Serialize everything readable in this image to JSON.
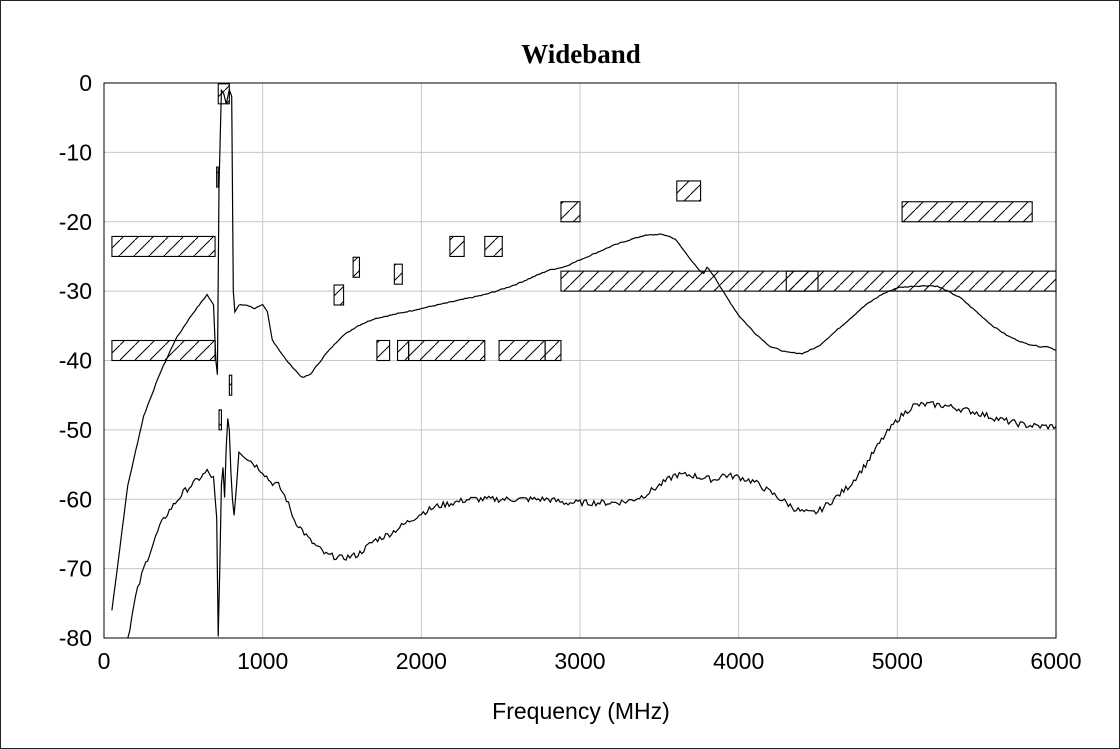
{
  "chart_data": {
    "type": "line",
    "title": "Wideband",
    "xlabel": "Frequency (MHz)",
    "ylabel": "",
    "xlim": [
      0,
      6000
    ],
    "ylim": [
      -80,
      0
    ],
    "grid": true,
    "x_ticks": [
      "0",
      "1000",
      "2000",
      "3000",
      "4000",
      "5000",
      "6000"
    ],
    "y_ticks": [
      "0",
      "-10",
      "-20",
      "-30",
      "-40",
      "-50",
      "-60",
      "-70",
      "-80"
    ],
    "series": [
      {
        "x": [
          50,
          150,
          250,
          350,
          450,
          550,
          650,
          690,
          705,
          715,
          725,
          740,
          755,
          770,
          790,
          805,
          815,
          825,
          850,
          900,
          950,
          1000,
          1030,
          1060,
          1150,
          1250,
          1300,
          1400,
          1500,
          1600,
          1700,
          1800,
          1900,
          2000,
          2100,
          2200,
          2300,
          2400,
          2500,
          2600,
          2700,
          2800,
          2900,
          3000,
          3100,
          3200,
          3300,
          3400,
          3500,
          3550,
          3600,
          3650,
          3700,
          3750,
          3780,
          3800,
          3850,
          3900,
          4000,
          4100,
          4200,
          4300,
          4400,
          4450,
          4500,
          4600,
          4700,
          4800,
          4900,
          5000,
          5100,
          5200,
          5250,
          5300,
          5400,
          5500,
          5600,
          5700,
          5800,
          5900,
          5950,
          6000
        ],
        "y": [
          -76,
          -58,
          -48,
          -42,
          -37,
          -33.5,
          -30.5,
          -32,
          -40,
          -42,
          -15,
          -1,
          -1.5,
          -3,
          -1,
          -2,
          -30,
          -33,
          -32,
          -32,
          -32.5,
          -32,
          -33,
          -37,
          -40,
          -42.5,
          -42,
          -39,
          -36.5,
          -35,
          -34,
          -33.5,
          -33,
          -32.5,
          -32,
          -31.5,
          -31,
          -30.5,
          -29.8,
          -29,
          -28,
          -27,
          -26.5,
          -25.5,
          -24.5,
          -23.5,
          -22.7,
          -22,
          -21.8,
          -22,
          -22.5,
          -24,
          -25.5,
          -27,
          -27.5,
          -26.5,
          -28,
          -30,
          -33.5,
          -36,
          -38,
          -38.8,
          -39,
          -38.5,
          -38,
          -36,
          -34,
          -32,
          -30.5,
          -29.5,
          -29.3,
          -29.2,
          -29.3,
          -29.8,
          -31,
          -33,
          -35,
          -36.5,
          -37.5,
          -38,
          -38,
          -38.5
        ]
      },
      {
        "x": [
          150,
          200,
          250,
          300,
          350,
          400,
          450,
          500,
          550,
          600,
          650,
          690,
          700,
          710,
          720,
          730,
          740,
          750,
          760,
          770,
          780,
          790,
          800,
          810,
          820,
          835,
          850,
          900,
          950,
          1000,
          1050,
          1100,
          1150,
          1200,
          1300,
          1400,
          1500,
          1600,
          1700,
          1800,
          1900,
          2000,
          2100,
          2200,
          2300,
          2400,
          2500,
          2600,
          2700,
          2800,
          2900,
          3000,
          3100,
          3200,
          3300,
          3400,
          3500,
          3600,
          3700,
          3750,
          3800,
          3850,
          3900,
          4000,
          4100,
          4200,
          4300,
          4350,
          4400,
          4450,
          4500,
          4600,
          4700,
          4800,
          4900,
          5000,
          5100,
          5200,
          5300,
          5400,
          5500,
          5600,
          5700,
          5800,
          5900,
          6000
        ],
        "y": [
          -80,
          -74,
          -70,
          -67,
          -64,
          -62,
          -60.5,
          -59,
          -58,
          -57,
          -56,
          -57,
          -60,
          -63,
          -80,
          -70,
          -58,
          -55,
          -60,
          -53,
          -48,
          -50,
          -56,
          -60,
          -62,
          -58,
          -53,
          -54,
          -55,
          -56,
          -57.5,
          -58,
          -60,
          -63,
          -66,
          -68,
          -68.5,
          -68,
          -66,
          -65,
          -63.5,
          -62,
          -61,
          -60.5,
          -60,
          -60,
          -60,
          -60,
          -60,
          -60,
          -60.5,
          -60.5,
          -60.5,
          -60.5,
          -60.3,
          -59.5,
          -58,
          -56.5,
          -56.5,
          -56.8,
          -57,
          -57.2,
          -56.5,
          -56.8,
          -57.5,
          -59,
          -60.5,
          -61.3,
          -61.8,
          -62,
          -61.8,
          -60,
          -58,
          -55,
          -51.5,
          -48.5,
          -46.5,
          -46.3,
          -46.5,
          -47,
          -47.5,
          -48.2,
          -48.8,
          -49.3,
          -49.5,
          -49.5
        ]
      }
    ],
    "masks": [
      {
        "x1": 50,
        "x2": 700,
        "y": -25
      },
      {
        "x1": 50,
        "x2": 700,
        "y": -40
      },
      {
        "x1": 2880,
        "x2": 6000,
        "y": -30
      },
      {
        "x1": 4300,
        "x2": 4500,
        "y": -30
      },
      {
        "x1": 5030,
        "x2": 5850,
        "y": -20
      },
      {
        "x1": 2880,
        "x2": 3000,
        "y": -20
      },
      {
        "x1": 3610,
        "x2": 3760,
        "y": -17
      },
      {
        "x1": 2180,
        "x2": 2270,
        "y": -25
      },
      {
        "x1": 2400,
        "x2": 2510,
        "y": -25
      },
      {
        "x1": 1450,
        "x2": 1510,
        "y": -32
      },
      {
        "x1": 1570,
        "x2": 1610,
        "y": -28
      },
      {
        "x1": 1830,
        "x2": 1880,
        "y": -29
      },
      {
        "x1": 1720,
        "x2": 1800,
        "y": -40
      },
      {
        "x1": 1850,
        "x2": 1920,
        "y": -40
      },
      {
        "x1": 1920,
        "x2": 2400,
        "y": -40
      },
      {
        "x1": 2490,
        "x2": 2780,
        "y": -40
      },
      {
        "x1": 2780,
        "x2": 2880,
        "y": -40
      },
      {
        "x1": 710,
        "x2": 720,
        "y": -15
      },
      {
        "x1": 720,
        "x2": 790,
        "y": -3
      },
      {
        "x1": 725,
        "x2": 740,
        "y": -50
      },
      {
        "x1": 790,
        "x2": 805,
        "y": -45
      }
    ]
  }
}
